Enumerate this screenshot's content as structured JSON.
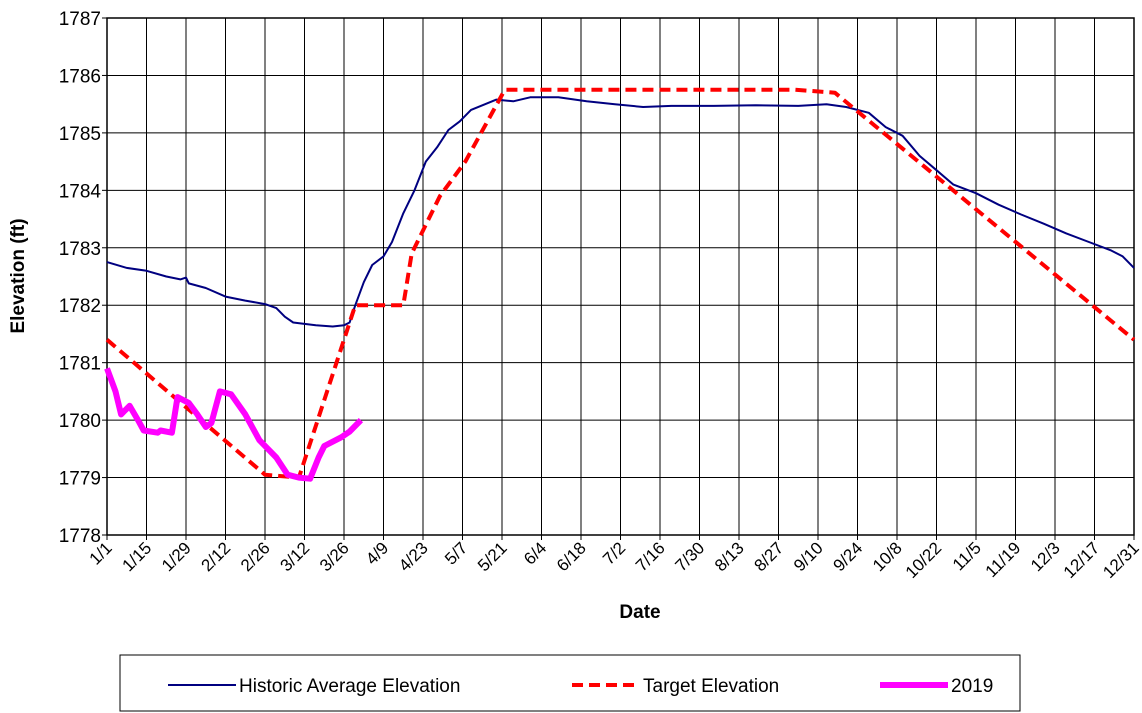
{
  "chart_data": {
    "type": "line",
    "x_label": "Date",
    "y_label": "Elevation (ft)",
    "xlim": [
      0,
      364
    ],
    "xticks": [
      {
        "value": 0,
        "label": "1/1"
      },
      {
        "value": 14,
        "label": "1/15"
      },
      {
        "value": 28,
        "label": "1/29"
      },
      {
        "value": 42,
        "label": "2/12"
      },
      {
        "value": 56,
        "label": "2/26"
      },
      {
        "value": 70,
        "label": "3/12"
      },
      {
        "value": 84,
        "label": "3/26"
      },
      {
        "value": 98,
        "label": "4/9"
      },
      {
        "value": 112,
        "label": "4/23"
      },
      {
        "value": 126,
        "label": "5/7"
      },
      {
        "value": 140,
        "label": "5/21"
      },
      {
        "value": 154,
        "label": "6/4"
      },
      {
        "value": 168,
        "label": "6/18"
      },
      {
        "value": 182,
        "label": "7/2"
      },
      {
        "value": 196,
        "label": "7/16"
      },
      {
        "value": 210,
        "label": "7/30"
      },
      {
        "value": 224,
        "label": "8/13"
      },
      {
        "value": 238,
        "label": "8/27"
      },
      {
        "value": 252,
        "label": "9/10"
      },
      {
        "value": 266,
        "label": "9/24"
      },
      {
        "value": 280,
        "label": "10/8"
      },
      {
        "value": 294,
        "label": "10/22"
      },
      {
        "value": 308,
        "label": "11/5"
      },
      {
        "value": 322,
        "label": "11/19"
      },
      {
        "value": 336,
        "label": "12/3"
      },
      {
        "value": 350,
        "label": "12/17"
      },
      {
        "value": 364,
        "label": "12/31"
      }
    ],
    "ylim": [
      1778,
      1787
    ],
    "yticks": [
      1778,
      1779,
      1780,
      1781,
      1782,
      1783,
      1784,
      1785,
      1786,
      1787
    ],
    "grid": true,
    "legend": "bottom",
    "series": [
      {
        "name": "Historic Average Elevation",
        "color": "#000080",
        "style": "solid",
        "x": [
          0,
          7,
          14,
          21,
          26,
          28,
          29,
          35,
          42,
          49,
          56,
          60,
          63,
          66,
          74,
          80,
          84,
          86,
          88,
          91,
          94,
          98,
          101,
          105,
          109,
          113,
          117,
          121,
          125,
          129,
          134,
          138,
          144,
          150,
          160,
          170,
          180,
          190,
          200,
          215,
          230,
          245,
          255,
          262,
          270,
          276,
          282,
          288,
          294,
          300,
          308,
          316,
          324,
          332,
          340,
          348,
          356,
          360,
          364
        ],
        "values": [
          1782.75,
          1782.65,
          1782.6,
          1782.5,
          1782.45,
          1782.48,
          1782.38,
          1782.3,
          1782.15,
          1782.08,
          1782.02,
          1781.95,
          1781.8,
          1781.7,
          1781.65,
          1781.63,
          1781.65,
          1781.7,
          1782.0,
          1782.4,
          1782.7,
          1782.85,
          1783.1,
          1783.6,
          1784.0,
          1784.5,
          1784.75,
          1785.05,
          1785.2,
          1785.4,
          1785.5,
          1785.58,
          1785.55,
          1785.62,
          1785.62,
          1785.55,
          1785.5,
          1785.45,
          1785.47,
          1785.47,
          1785.48,
          1785.47,
          1785.5,
          1785.45,
          1785.35,
          1785.1,
          1784.95,
          1784.6,
          1784.35,
          1784.1,
          1783.95,
          1783.75,
          1783.58,
          1783.42,
          1783.25,
          1783.1,
          1782.95,
          1782.85,
          1782.65
        ]
      },
      {
        "name": "Target Elevation",
        "color": "#ff0000",
        "style": "dashed",
        "x": [
          0,
          56,
          68,
          88,
          105,
          108,
          118,
          127,
          141,
          244,
          258,
          364
        ],
        "values": [
          1781.4,
          1779.05,
          1779.0,
          1782.0,
          1782.0,
          1782.9,
          1783.9,
          1784.5,
          1785.75,
          1785.75,
          1785.7,
          1781.4
        ]
      },
      {
        "name": "2019",
        "color": "#ff00ff",
        "style": "thick",
        "x": [
          0,
          3,
          5,
          8,
          11,
          13,
          18,
          19,
          23,
          25,
          29,
          32,
          35,
          37,
          40,
          44,
          49,
          54,
          60,
          64,
          68,
          72,
          75,
          77,
          83,
          86,
          90
        ],
        "values": [
          1780.9,
          1780.5,
          1780.1,
          1780.25,
          1780.0,
          1779.82,
          1779.78,
          1779.82,
          1779.78,
          1780.4,
          1780.3,
          1780.1,
          1779.88,
          1779.95,
          1780.5,
          1780.45,
          1780.1,
          1779.65,
          1779.35,
          1779.05,
          1779.0,
          1778.98,
          1779.35,
          1779.55,
          1779.7,
          1779.8,
          1780.0
        ]
      }
    ]
  }
}
